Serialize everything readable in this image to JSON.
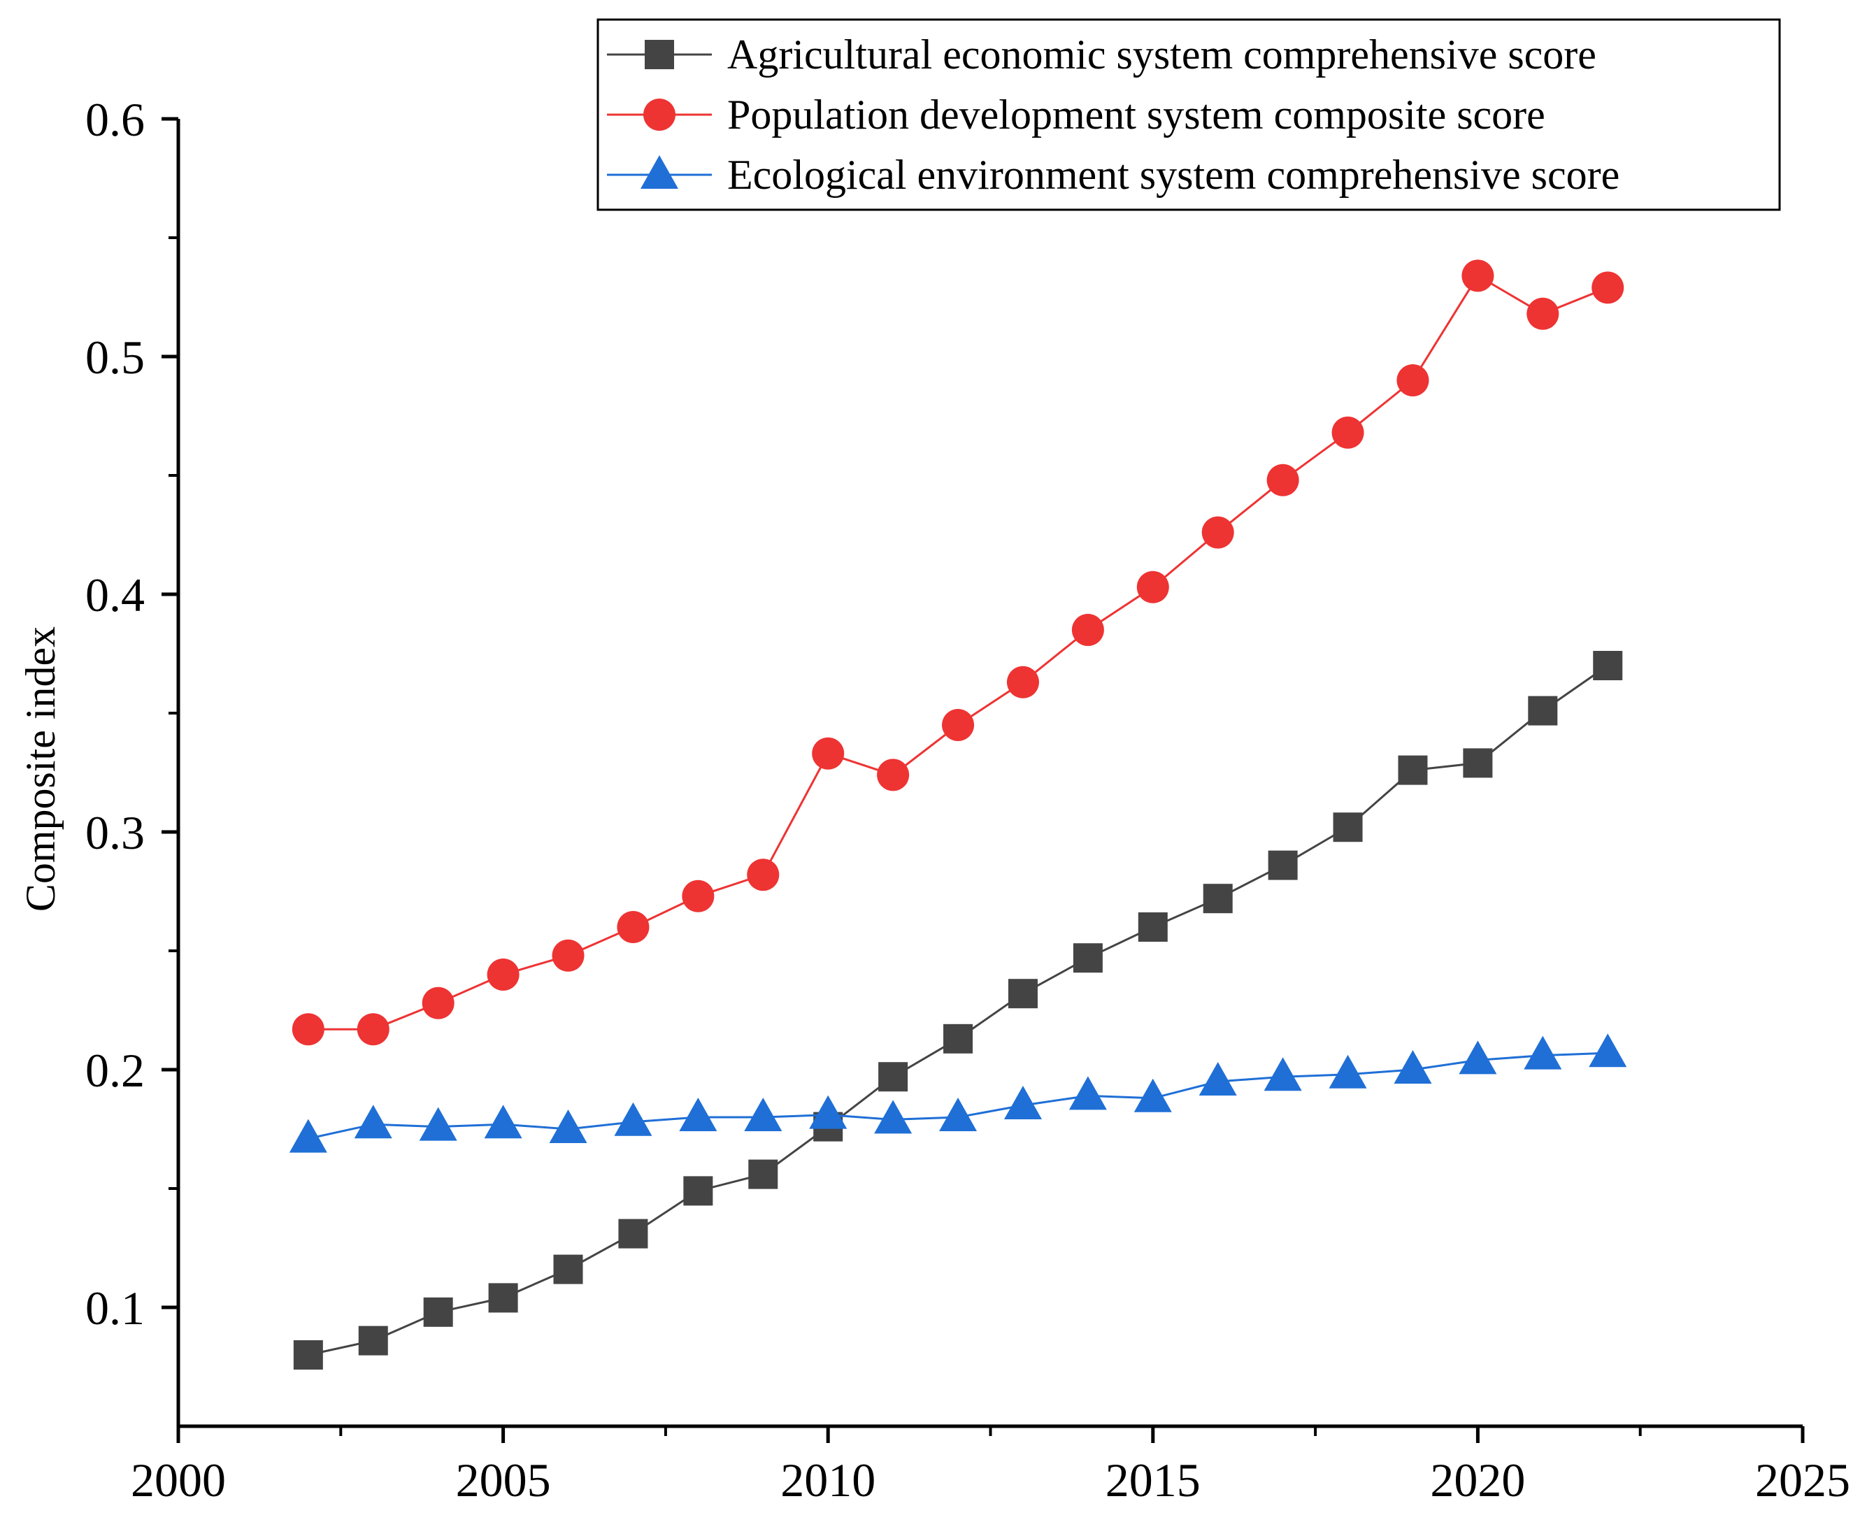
{
  "chart_data": {
    "type": "line",
    "title": "",
    "xlabel": "",
    "ylabel": "Composite index",
    "xlim": [
      2000,
      2025
    ],
    "ylim": [
      0.05,
      0.6
    ],
    "x_ticks": [
      2000,
      2005,
      2010,
      2015,
      2020,
      2025
    ],
    "x_tick_labels": [
      "2000",
      "2005",
      "2010",
      "2015",
      "2020",
      "2025"
    ],
    "y_ticks": [
      0.1,
      0.2,
      0.3,
      0.4,
      0.5,
      0.6
    ],
    "y_tick_labels": [
      "0.1",
      "0.2",
      "0.3",
      "0.4",
      "0.5",
      "0.6"
    ],
    "grid": false,
    "legend_position": "top-right",
    "x": [
      2002,
      2003,
      2004,
      2005,
      2006,
      2007,
      2008,
      2009,
      2010,
      2011,
      2012,
      2013,
      2014,
      2015,
      2016,
      2017,
      2018,
      2019,
      2020,
      2021,
      2022
    ],
    "series": [
      {
        "name": "Agricultural economic system comprehensive score",
        "color": "#444444",
        "marker": "square",
        "values": [
          0.08,
          0.086,
          0.098,
          0.104,
          0.116,
          0.131,
          0.149,
          0.156,
          0.176,
          0.197,
          0.213,
          0.232,
          0.247,
          0.26,
          0.272,
          0.286,
          0.302,
          0.326,
          0.329,
          0.351,
          0.37
        ]
      },
      {
        "name": "Population development system composite score",
        "color": "#ee3333",
        "marker": "circle",
        "values": [
          0.217,
          0.217,
          0.228,
          0.24,
          0.248,
          0.26,
          0.273,
          0.282,
          0.333,
          0.324,
          0.345,
          0.363,
          0.385,
          0.403,
          0.426,
          0.448,
          0.468,
          0.49,
          0.534,
          0.518,
          0.529
        ]
      },
      {
        "name": "Ecological environment system comprehensive score",
        "color": "#1f6fd6",
        "marker": "triangle",
        "values": [
          0.171,
          0.177,
          0.176,
          0.177,
          0.175,
          0.178,
          0.18,
          0.18,
          0.181,
          0.179,
          0.18,
          0.185,
          0.189,
          0.188,
          0.195,
          0.197,
          0.198,
          0.2,
          0.204,
          0.206,
          0.207
        ]
      }
    ]
  }
}
